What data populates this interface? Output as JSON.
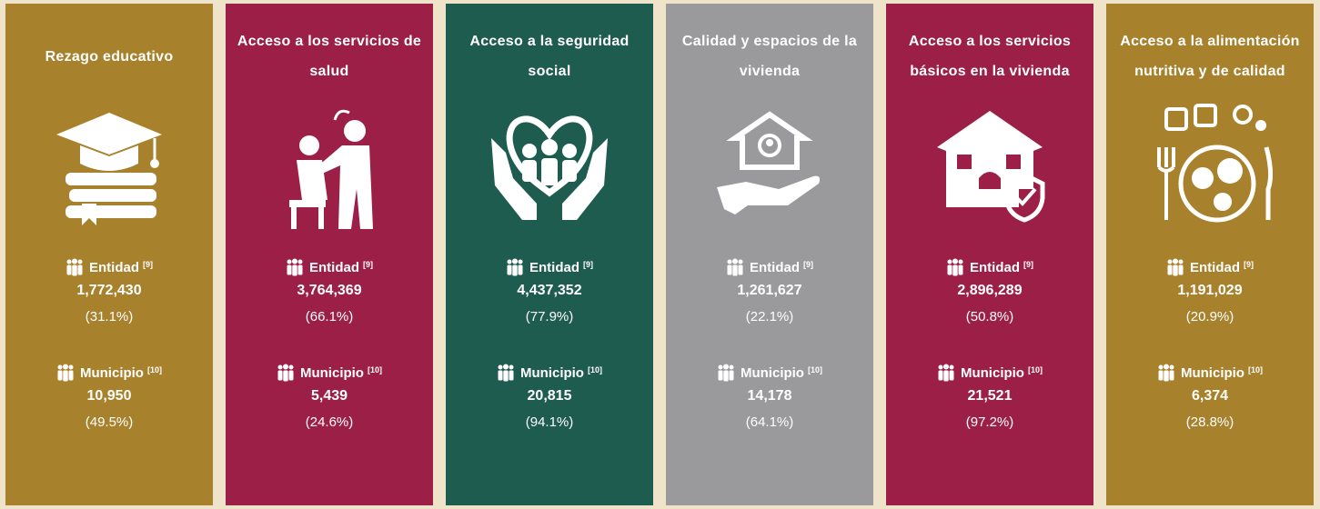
{
  "cards": [
    {
      "title": "Rezago educativo",
      "color": "#a8812c",
      "entidad": {
        "label": "Entidad",
        "ref": "[9]",
        "value": "1,772,430",
        "percent": "(31.1%)"
      },
      "municipio": {
        "label": "Municipio",
        "ref": "[10]",
        "value": "10,950",
        "percent": "(49.5%)"
      }
    },
    {
      "title": "Acceso a los servicios de salud",
      "color": "#9c1f48",
      "entidad": {
        "label": "Entidad",
        "ref": "[9]",
        "value": "3,764,369",
        "percent": "(66.1%)"
      },
      "municipio": {
        "label": "Municipio",
        "ref": "[10]",
        "value": "5,439",
        "percent": "(24.6%)"
      }
    },
    {
      "title": "Acceso a la seguridad social",
      "color": "#1f5c50",
      "entidad": {
        "label": "Entidad",
        "ref": "[9]",
        "value": "4,437,352",
        "percent": "(77.9%)"
      },
      "municipio": {
        "label": "Municipio",
        "ref": "[10]",
        "value": "20,815",
        "percent": "(94.1%)"
      }
    },
    {
      "title": "Calidad y espacios de la vivienda",
      "color": "#9a999b",
      "entidad": {
        "label": "Entidad",
        "ref": "[9]",
        "value": "1,261,627",
        "percent": "(22.1%)"
      },
      "municipio": {
        "label": "Municipio",
        "ref": "[10]",
        "value": "14,178",
        "percent": "(64.1%)"
      }
    },
    {
      "title": "Acceso a los servicios básicos en la vivienda",
      "color": "#9c1f48",
      "entidad": {
        "label": "Entidad",
        "ref": "[9]",
        "value": "2,896,289",
        "percent": "(50.8%)"
      },
      "municipio": {
        "label": "Municipio",
        "ref": "[10]",
        "value": "21,521",
        "percent": "(97.2%)"
      }
    },
    {
      "title": "Acceso a la alimentación nutritiva y de calidad",
      "color": "#a8812c",
      "entidad": {
        "label": "Entidad",
        "ref": "[9]",
        "value": "1,191,029",
        "percent": "(20.9%)"
      },
      "municipio": {
        "label": "Municipio",
        "ref": "[10]",
        "value": "6,374",
        "percent": "(28.8%)"
      }
    }
  ]
}
